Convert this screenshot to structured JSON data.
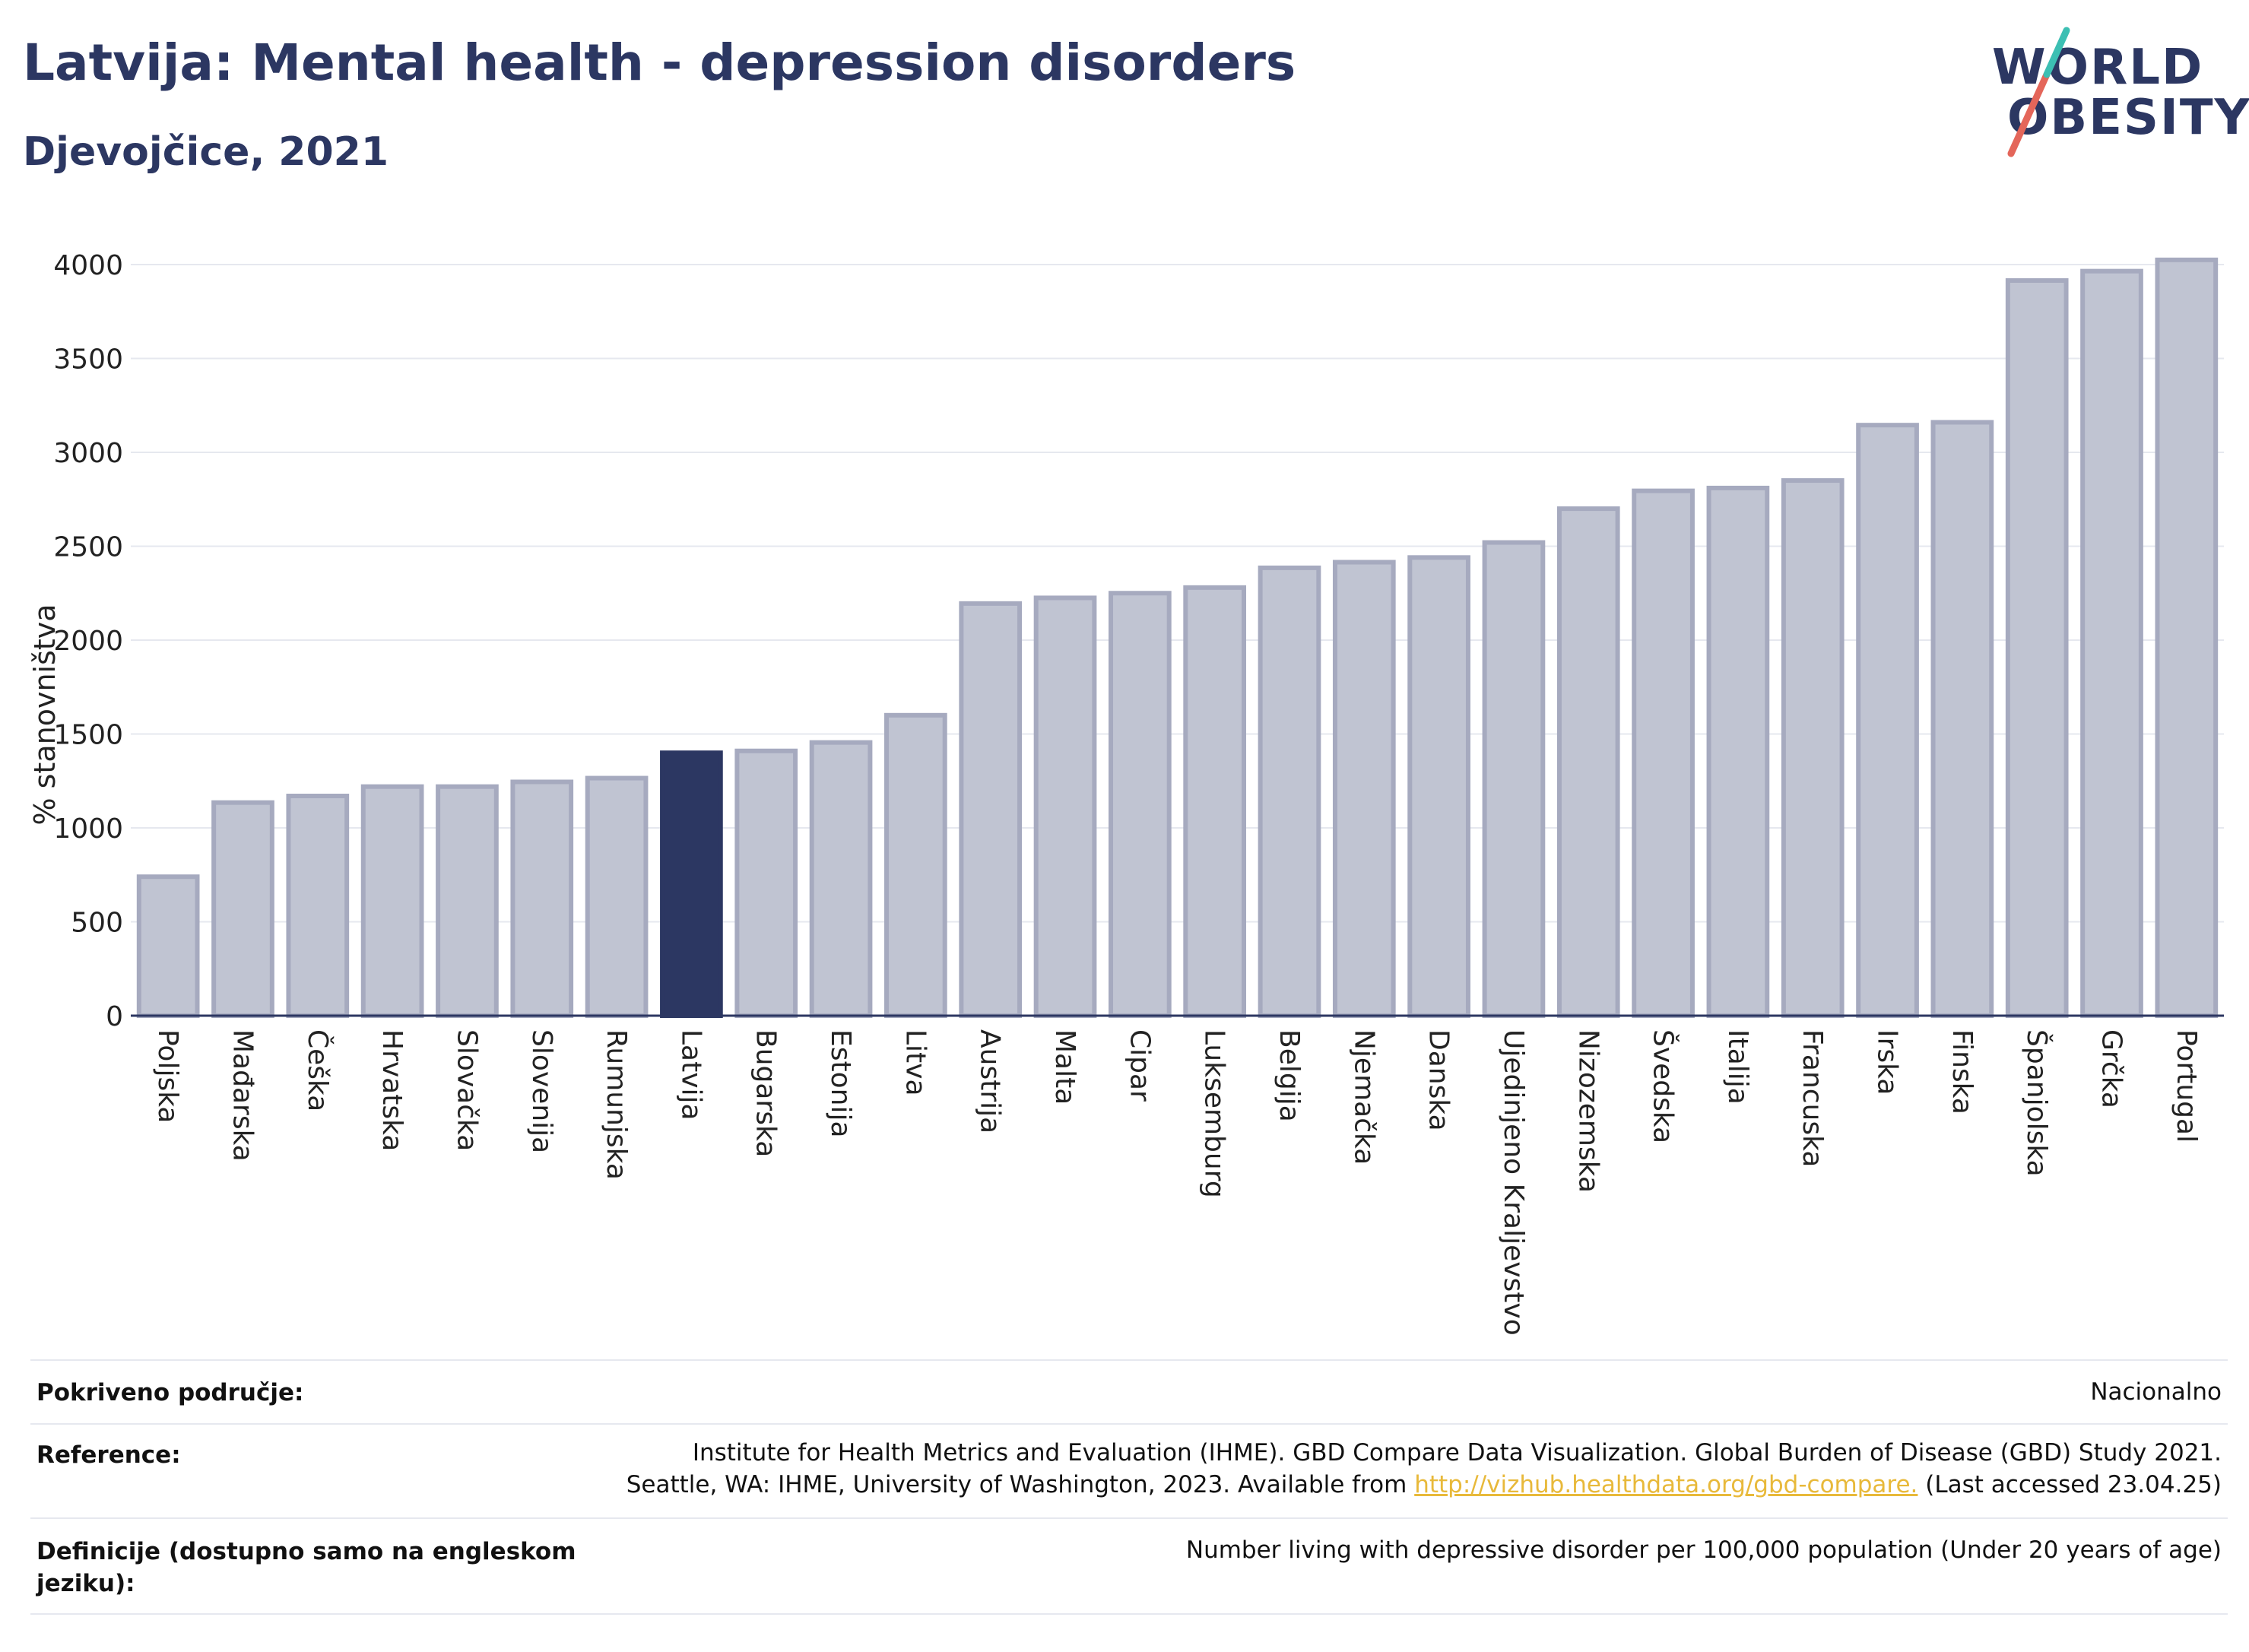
{
  "header": {
    "title": "Latvija: Mental health - depression disorders",
    "subtitle": "Djevojčice, 2021"
  },
  "logo": {
    "line1": "WORLD",
    "line2": "OBESITY",
    "colors": {
      "text": "#2c3762",
      "slash_red": "#e4665a",
      "slash_teal": "#3cbfb3"
    }
  },
  "chart_data": {
    "type": "bar",
    "ylabel": "% stanovništva",
    "ylim": [
      0,
      4000
    ],
    "yticks": [
      0,
      500,
      1000,
      1500,
      2000,
      2500,
      3000,
      3500,
      4000
    ],
    "grid": true,
    "highlight": "Latvija",
    "colors": {
      "bar": "#c0c4d2",
      "bar_border": "#a6aabf",
      "highlight": "#2c3762"
    },
    "categories": [
      "Poljska",
      "Mađarska",
      "Češka",
      "Hrvatska",
      "Slovačka",
      "Slovenija",
      "Rumunjska",
      "Latvija",
      "Bugarska",
      "Estonija",
      "Litva",
      "Austrija",
      "Malta",
      "Cipar",
      "Luksemburg",
      "Belgija",
      "Njemačka",
      "Danska",
      "Ujedinjeno Kraljevstvo",
      "Nizozemska",
      "Švedska",
      "Italija",
      "Francuska",
      "Irska",
      "Finska",
      "Španjolska",
      "Grčka",
      "Portugal"
    ],
    "values": [
      740,
      1135,
      1170,
      1220,
      1220,
      1245,
      1265,
      1400,
      1410,
      1455,
      1600,
      2195,
      2225,
      2250,
      2280,
      2385,
      2415,
      2440,
      2520,
      2700,
      2795,
      2810,
      2850,
      3145,
      3160,
      3915,
      3965,
      4025
    ]
  },
  "footer": {
    "coverage_label": "Pokriveno područje:",
    "coverage_value": "Nacionalno",
    "reference_label": "Reference:",
    "reference_line1": "Institute for Health Metrics and Evaluation (IHME). GBD Compare Data Visualization. Global Burden of Disease (GBD) Study 2021.",
    "reference_line2_pre": "Seattle, WA: IHME, University of Washington, 2023. Available from ",
    "reference_link": "http://vizhub.healthdata.org/gbd-compare.",
    "reference_line2_post": " (Last accessed 23.04.25)",
    "definition_label": "Definicije (dostupno samo na engleskom jeziku):",
    "definition_value": "Number living with depressive disorder per 100,000 population (Under 20 years of age)"
  }
}
